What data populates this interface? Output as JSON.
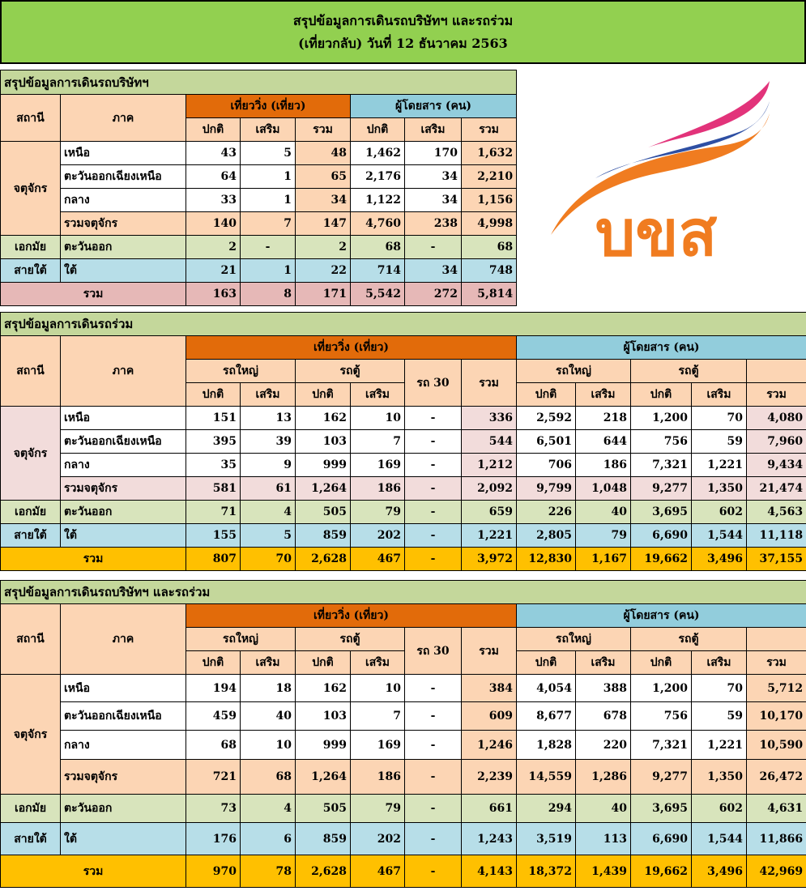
{
  "header": {
    "line1": "สรุปข้อมูลการเดินรถบริษัทฯ และรถร่วม",
    "line2": "(เที่ยวกลับ) วันที่ 12 ธันวาคม 2563"
  },
  "logo": {
    "text": "บขส"
  },
  "t1": {
    "title": "สรุปข้อมูลการเดินรถบริษัทฯ",
    "h_station": "สถานี",
    "h_region": "ภาค",
    "h_trips": "เที่ยววิ่ง (เที่ยว)",
    "h_pax": "ผู้โดยสาร (คน)",
    "sub": [
      "ปกติ",
      "เสริม",
      "รวม",
      "ปกติ",
      "เสริม",
      "รวม"
    ],
    "stations": [
      "จตุจักร",
      "เอกมัย",
      "สายใต้"
    ],
    "rows": [
      {
        "region": "เหนือ",
        "v": [
          "43",
          "5",
          "48",
          "1,462",
          "170",
          "1,632"
        ]
      },
      {
        "region": "ตะวันออกเฉียงเหนือ",
        "v": [
          "64",
          "1",
          "65",
          "2,176",
          "34",
          "2,210"
        ]
      },
      {
        "region": "กลาง",
        "v": [
          "33",
          "1",
          "34",
          "1,122",
          "34",
          "1,156"
        ]
      },
      {
        "region": "รวมจตุจักร",
        "v": [
          "140",
          "7",
          "147",
          "4,760",
          "238",
          "4,998"
        ]
      },
      {
        "region": "ตะวันออก",
        "v": [
          "2",
          "-",
          "2",
          "68",
          "-",
          "68"
        ]
      },
      {
        "region": "ใต้",
        "v": [
          "21",
          "1",
          "22",
          "714",
          "34",
          "748"
        ]
      }
    ],
    "total": {
      "label": "รวม",
      "v": [
        "163",
        "8",
        "171",
        "5,542",
        "272",
        "5,814"
      ]
    }
  },
  "t2": {
    "title": "สรุปข้อมูลการเดินรถร่วม",
    "h_station": "สถานี",
    "h_region": "ภาค",
    "h_trips": "เที่ยววิ่ง (เที่ยว)",
    "h_pax": "ผู้โดยสาร (คน)",
    "big_bus": "รถใหญ่",
    "van": "รถตู้",
    "bus30": "รถ 30",
    "sum": "รวม",
    "normal": "ปกติ",
    "extra": "เสริม",
    "stations": [
      "จตุจักร",
      "เอกมัย",
      "สายใต้"
    ],
    "rows": [
      {
        "region": "เหนือ",
        "v": [
          "151",
          "13",
          "162",
          "10",
          "-",
          "336",
          "2,592",
          "218",
          "1,200",
          "70",
          "4,080"
        ]
      },
      {
        "region": "ตะวันออกเฉียงเหนือ",
        "v": [
          "395",
          "39",
          "103",
          "7",
          "-",
          "544",
          "6,501",
          "644",
          "756",
          "59",
          "7,960"
        ]
      },
      {
        "region": "กลาง",
        "v": [
          "35",
          "9",
          "999",
          "169",
          "-",
          "1,212",
          "706",
          "186",
          "7,321",
          "1,221",
          "9,434"
        ]
      },
      {
        "region": "รวมจตุจักร",
        "v": [
          "581",
          "61",
          "1,264",
          "186",
          "-",
          "2,092",
          "9,799",
          "1,048",
          "9,277",
          "1,350",
          "21,474"
        ]
      },
      {
        "region": "ตะวันออก",
        "v": [
          "71",
          "4",
          "505",
          "79",
          "-",
          "659",
          "226",
          "40",
          "3,695",
          "602",
          "4,563"
        ]
      },
      {
        "region": "ใต้",
        "v": [
          "155",
          "5",
          "859",
          "202",
          "-",
          "1,221",
          "2,805",
          "79",
          "6,690",
          "1,544",
          "11,118"
        ]
      }
    ],
    "total": {
      "label": "รวม",
      "v": [
        "807",
        "70",
        "2,628",
        "467",
        "-",
        "3,972",
        "12,830",
        "1,167",
        "19,662",
        "3,496",
        "37,155"
      ]
    }
  },
  "t3": {
    "title": "สรุปข้อมูลการเดินรถบริษัทฯ และรถร่วม",
    "h_station": "สถานี",
    "h_region": "ภาค",
    "h_trips": "เที่ยววิ่ง (เที่ยว)",
    "h_pax": "ผู้โดยสาร (คน)",
    "big_bus": "รถใหญ่",
    "van": "รถตู้",
    "bus30": "รถ 30",
    "sum": "รวม",
    "normal": "ปกติ",
    "extra": "เสริม",
    "stations": [
      "จตุจักร",
      "เอกมัย",
      "สายใต้"
    ],
    "rows": [
      {
        "region": "เหนือ",
        "v": [
          "194",
          "18",
          "162",
          "10",
          "-",
          "384",
          "4,054",
          "388",
          "1,200",
          "70",
          "5,712"
        ]
      },
      {
        "region": "ตะวันออกเฉียงเหนือ",
        "v": [
          "459",
          "40",
          "103",
          "7",
          "-",
          "609",
          "8,677",
          "678",
          "756",
          "59",
          "10,170"
        ]
      },
      {
        "region": "กลาง",
        "v": [
          "68",
          "10",
          "999",
          "169",
          "-",
          "1,246",
          "1,828",
          "220",
          "7,321",
          "1,221",
          "10,590"
        ]
      },
      {
        "region": "รวมจตุจักร",
        "v": [
          "721",
          "68",
          "1,264",
          "186",
          "-",
          "2,239",
          "14,559",
          "1,286",
          "9,277",
          "1,350",
          "26,472"
        ]
      },
      {
        "region": "ตะวันออก",
        "v": [
          "73",
          "4",
          "505",
          "79",
          "-",
          "661",
          "294",
          "40",
          "3,695",
          "602",
          "4,631"
        ]
      },
      {
        "region": "ใต้",
        "v": [
          "176",
          "6",
          "859",
          "202",
          "-",
          "1,243",
          "3,519",
          "113",
          "6,690",
          "1,544",
          "11,866"
        ]
      }
    ],
    "total": {
      "label": "รวม",
      "v": [
        "970",
        "78",
        "2,628",
        "467",
        "-",
        "4,143",
        "18,372",
        "1,439",
        "19,662",
        "3,496",
        "42,969"
      ]
    }
  },
  "colors": {
    "green": "#92d050",
    "orange": "#e26b0a",
    "blue": "#92cddc",
    "peach": "#fcd5b4",
    "yellow": "#ffc000",
    "pink_total": "#e6b8b7"
  }
}
